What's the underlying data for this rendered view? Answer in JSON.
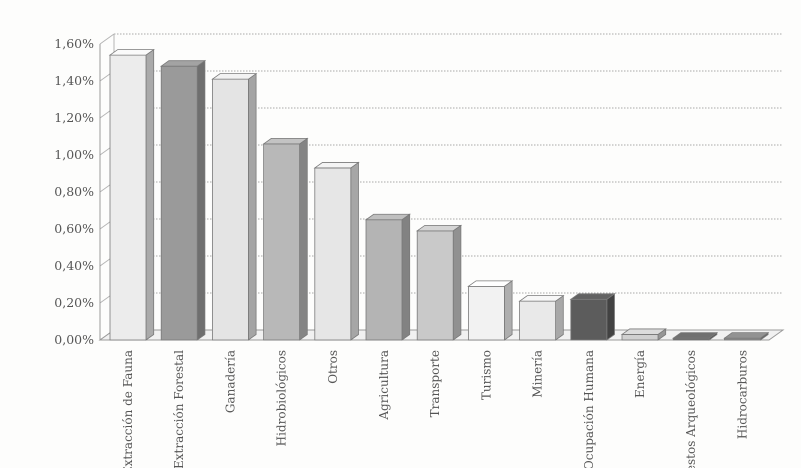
{
  "chart_data": {
    "type": "bar",
    "categories": [
      "Extracción de Fauna",
      "Extracción Forestal",
      "Ganadería",
      "Hidrobiológicos",
      "Otros",
      "Agricultura",
      "Transporte",
      "Turismo",
      "Minería",
      "Ocupación Humana",
      "Energía",
      "Restos Arqueológicos",
      "Hidrocarburos"
    ],
    "values": [
      1.54,
      1.48,
      1.41,
      1.06,
      0.93,
      0.65,
      0.59,
      0.29,
      0.21,
      0.22,
      0.03,
      0.01,
      0.01
    ],
    "colors": [
      "#ececec",
      "#9a9a9a",
      "#e4e4e4",
      "#b8b8b8",
      "#e6e6e6",
      "#b4b4b4",
      "#c9c9c9",
      "#f2f2f2",
      "#e9e9e9",
      "#5c5c5c",
      "#d0d0d0",
      "#6a6a6a",
      "#8a8a8a"
    ],
    "yticks": [
      "0,00%",
      "0,20%",
      "0,40%",
      "0,60%",
      "0,80%",
      "1,00%",
      "1,20%",
      "1,40%",
      "1,60%"
    ],
    "ylim": [
      0,
      1.6
    ],
    "grid": true,
    "legend": "none",
    "title": "",
    "xlabel": "",
    "ylabel": ""
  }
}
